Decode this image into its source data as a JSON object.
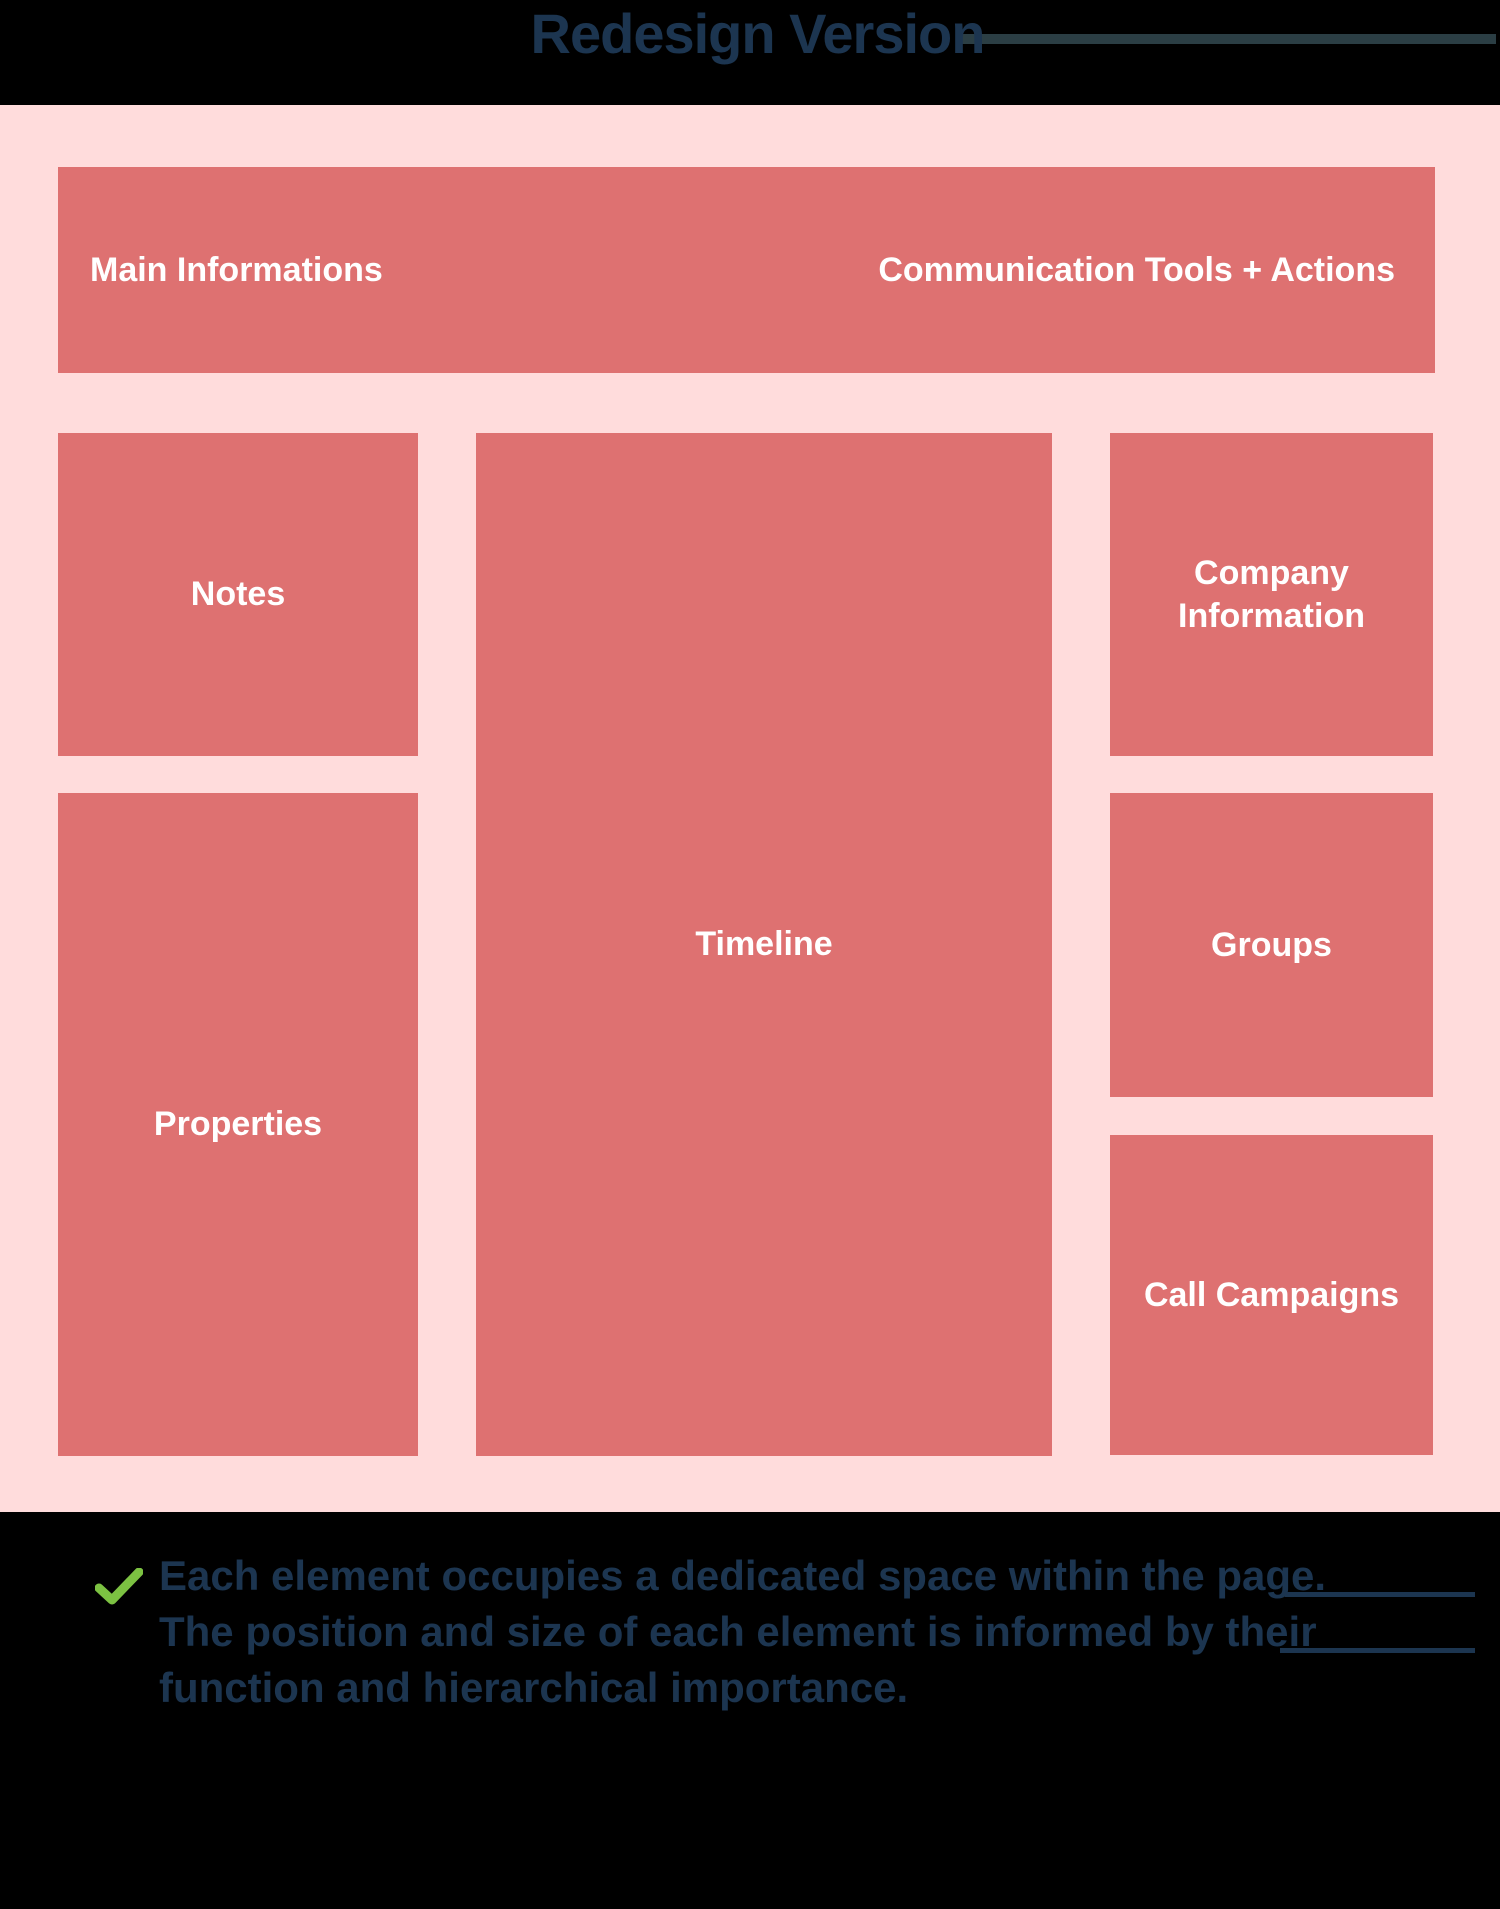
{
  "title": "Redesign Version",
  "layout_blocks": {
    "header_left": "Main Informations",
    "header_right": "Communication Tools + Actions",
    "notes": "Notes",
    "properties": "Properties",
    "timeline": "Timeline",
    "company_info": "Company\nInformation",
    "groups": "Groups",
    "call_campaigns": "Call Campaigns"
  },
  "footer": {
    "line1": "Each element occupies a dedicated space within the page.",
    "line2": "The position and size of each element is informed by their",
    "line3": "function and hierarchical importance."
  },
  "colors": {
    "canvas": "#ffdcdc",
    "block": "#de7171",
    "title": "#1c3550",
    "check": "#7cc242"
  }
}
